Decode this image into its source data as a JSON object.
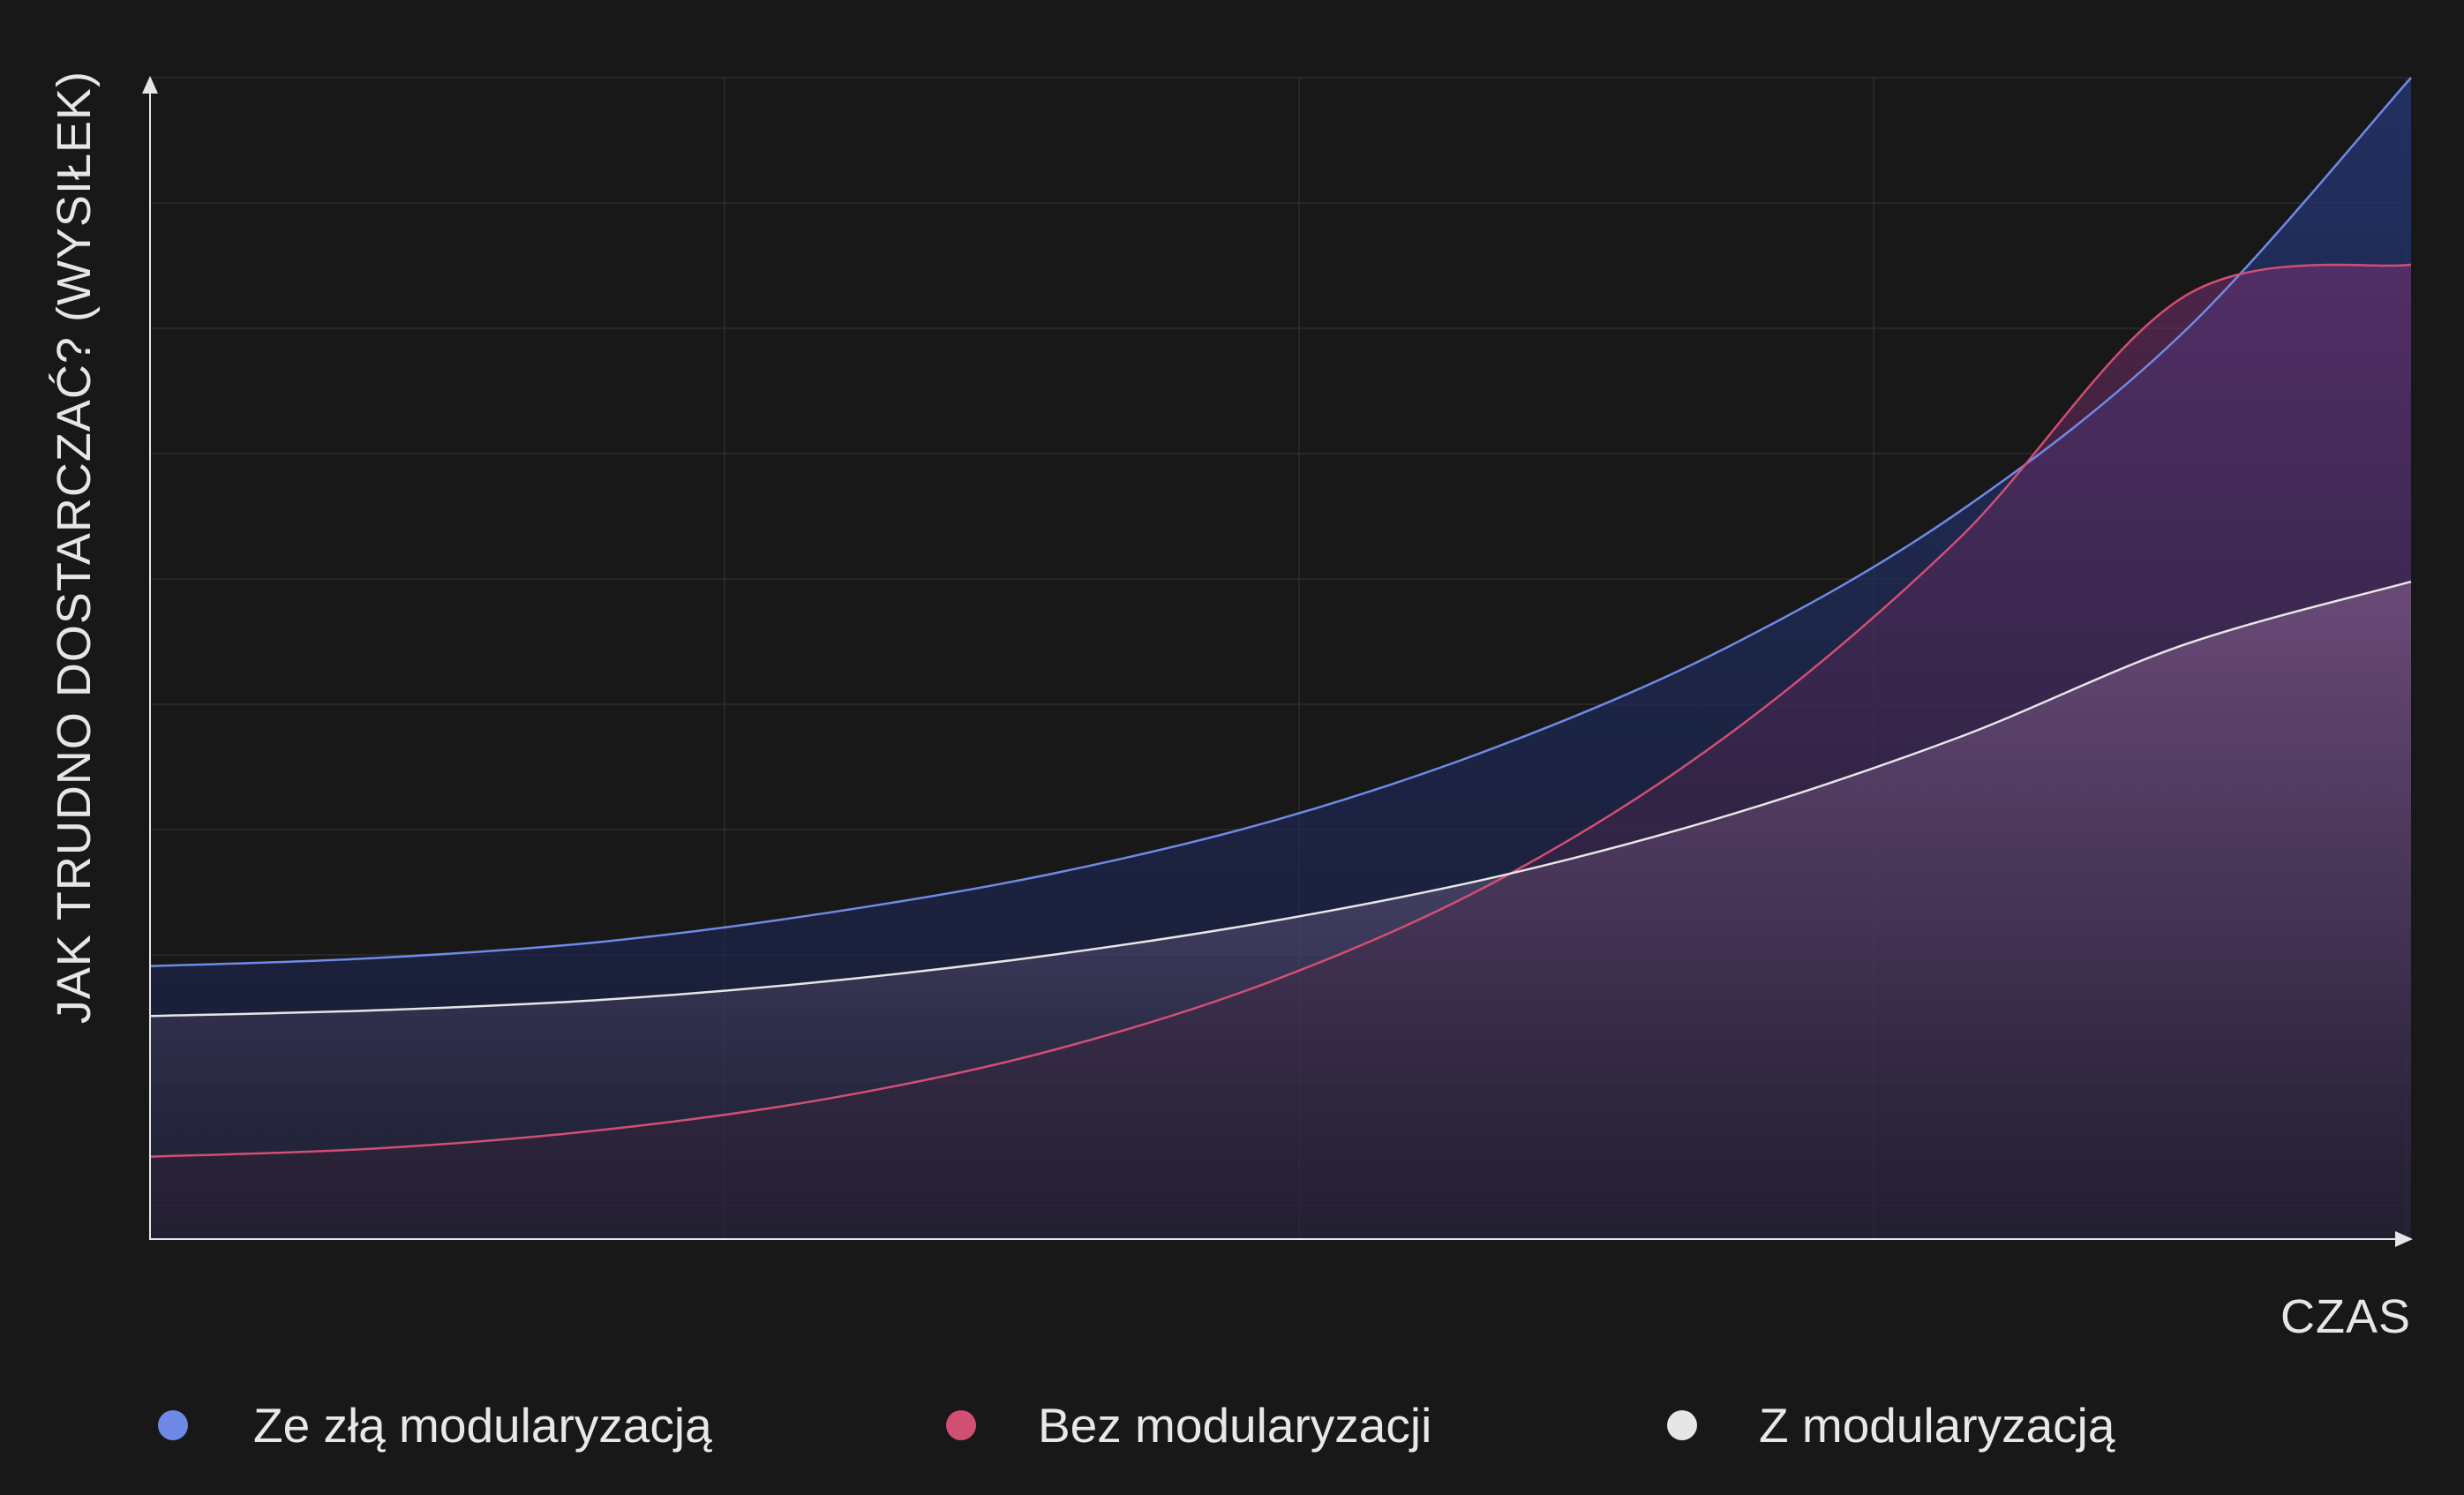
{
  "chart_data": {
    "type": "area",
    "xlabel": "CZAS",
    "ylabel": "JAK TRUDNO DOSTARCZAĆ? (WYSIŁEK)",
    "x_ticks_shown": false,
    "y_ticks_shown": false,
    "grid": true,
    "legend_position": "bottom",
    "xlim": [
      0,
      1
    ],
    "ylim": [
      0,
      1
    ],
    "x": [
      0,
      0.1,
      0.2,
      0.3,
      0.4,
      0.5,
      0.6,
      0.7,
      0.8,
      0.9,
      1.0
    ],
    "series": [
      {
        "name": "Ze złą modularyzacją",
        "color": "#6f8ae6",
        "values": [
          0.235,
          0.242,
          0.256,
          0.281,
          0.315,
          0.362,
          0.427,
          0.512,
          0.626,
          0.782,
          1.0
        ]
      },
      {
        "name": "Bez modularyzacji",
        "color": "#d24f74",
        "values": [
          0.071,
          0.078,
          0.094,
          0.121,
          0.163,
          0.225,
          0.313,
          0.437,
          0.603,
          0.812,
          0.839
        ]
      },
      {
        "name": "Z modularyzacją",
        "color": "#e6e6e6",
        "values": [
          0.192,
          0.197,
          0.206,
          0.222,
          0.245,
          0.275,
          0.314,
          0.366,
          0.432,
          0.512,
          0.566
        ]
      }
    ]
  },
  "legend": [
    {
      "label": "Ze złą modularyzacją",
      "color": "#6f8ae6"
    },
    {
      "label": "Bez modularyzacji",
      "color": "#d24f74"
    },
    {
      "label": "Z modularyzacją",
      "color": "#e6e6e6"
    }
  ]
}
